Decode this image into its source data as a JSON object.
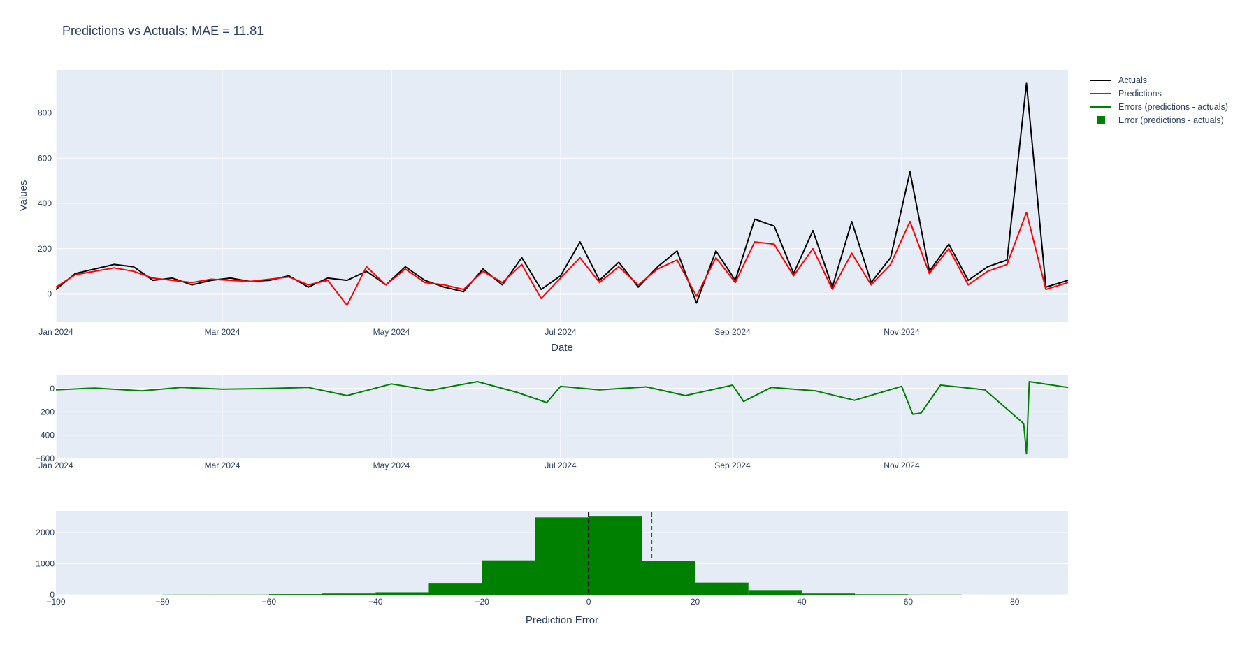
{
  "title": "Predictions vs Actuals: MAE = 11.81",
  "colors": {
    "actuals": "#000000",
    "predictions": "#ff0000",
    "errors": "#008000",
    "plot_bg": "#e5ecf6",
    "grid": "#ffffff",
    "text": "#2a3f5f"
  },
  "legend": {
    "placement": "top-right",
    "items": [
      {
        "label": "Actuals",
        "kind": "line",
        "color": "#000000"
      },
      {
        "label": "Predictions",
        "kind": "line",
        "color": "#ff0000"
      },
      {
        "label": "Errors (predictions - actuals)",
        "kind": "line",
        "color": "#008000"
      },
      {
        "label": "Error (predictions - actuals)",
        "kind": "square",
        "color": "#008000"
      }
    ]
  },
  "chart_data": [
    {
      "type": "line",
      "ylabel": "Values",
      "xlabel": "Date",
      "xlim": [
        "2024-01-01",
        "2024-12-31"
      ],
      "ylim": [
        -125,
        990
      ],
      "grid": true,
      "x_ticks": [
        {
          "date": "2024-01-01",
          "label": "Jan 2024"
        },
        {
          "date": "2024-03-01",
          "label": "Mar 2024"
        },
        {
          "date": "2024-05-01",
          "label": "May 2024"
        },
        {
          "date": "2024-07-01",
          "label": "Jul 2024"
        },
        {
          "date": "2024-09-01",
          "label": "Sep 2024"
        },
        {
          "date": "2024-11-01",
          "label": "Nov 2024"
        }
      ],
      "y_ticks": [
        0,
        200,
        400,
        600,
        800
      ],
      "series": [
        {
          "name": "Actuals",
          "color": "#000000",
          "points": [
            [
              "2024-01-01",
              20
            ],
            [
              "2024-01-08",
              90
            ],
            [
              "2024-01-15",
              110
            ],
            [
              "2024-01-22",
              130
            ],
            [
              "2024-01-29",
              120
            ],
            [
              "2024-02-05",
              60
            ],
            [
              "2024-02-12",
              70
            ],
            [
              "2024-02-19",
              40
            ],
            [
              "2024-02-26",
              60
            ],
            [
              "2024-03-04",
              70
            ],
            [
              "2024-03-11",
              55
            ],
            [
              "2024-03-18",
              60
            ],
            [
              "2024-03-25",
              80
            ],
            [
              "2024-04-01",
              30
            ],
            [
              "2024-04-08",
              70
            ],
            [
              "2024-04-15",
              60
            ],
            [
              "2024-04-22",
              100
            ],
            [
              "2024-04-29",
              40
            ],
            [
              "2024-05-06",
              120
            ],
            [
              "2024-05-13",
              60
            ],
            [
              "2024-05-20",
              30
            ],
            [
              "2024-05-27",
              10
            ],
            [
              "2024-06-03",
              110
            ],
            [
              "2024-06-10",
              40
            ],
            [
              "2024-06-17",
              160
            ],
            [
              "2024-06-24",
              20
            ],
            [
              "2024-07-01",
              80
            ],
            [
              "2024-07-08",
              230
            ],
            [
              "2024-07-15",
              60
            ],
            [
              "2024-07-22",
              140
            ],
            [
              "2024-07-29",
              30
            ],
            [
              "2024-08-05",
              120
            ],
            [
              "2024-08-12",
              190
            ],
            [
              "2024-08-19",
              -40
            ],
            [
              "2024-08-26",
              190
            ],
            [
              "2024-09-02",
              60
            ],
            [
              "2024-09-09",
              330
            ],
            [
              "2024-09-16",
              300
            ],
            [
              "2024-09-23",
              90
            ],
            [
              "2024-09-30",
              280
            ],
            [
              "2024-10-07",
              30
            ],
            [
              "2024-10-14",
              320
            ],
            [
              "2024-10-21",
              50
            ],
            [
              "2024-10-28",
              160
            ],
            [
              "2024-11-04",
              540
            ],
            [
              "2024-11-11",
              100
            ],
            [
              "2024-11-18",
              220
            ],
            [
              "2024-11-25",
              60
            ],
            [
              "2024-12-02",
              120
            ],
            [
              "2024-12-09",
              150
            ],
            [
              "2024-12-16",
              930
            ],
            [
              "2024-12-23",
              30
            ],
            [
              "2024-12-31",
              60
            ]
          ]
        },
        {
          "name": "Predictions",
          "color": "#ff0000",
          "points": [
            [
              "2024-01-01",
              30
            ],
            [
              "2024-01-08",
              85
            ],
            [
              "2024-01-15",
              100
            ],
            [
              "2024-01-22",
              115
            ],
            [
              "2024-01-29",
              100
            ],
            [
              "2024-02-05",
              70
            ],
            [
              "2024-02-12",
              60
            ],
            [
              "2024-02-19",
              50
            ],
            [
              "2024-02-26",
              65
            ],
            [
              "2024-03-04",
              60
            ],
            [
              "2024-03-11",
              55
            ],
            [
              "2024-03-18",
              65
            ],
            [
              "2024-03-25",
              75
            ],
            [
              "2024-04-01",
              40
            ],
            [
              "2024-04-08",
              60
            ],
            [
              "2024-04-15",
              -50
            ],
            [
              "2024-04-22",
              120
            ],
            [
              "2024-04-29",
              40
            ],
            [
              "2024-05-06",
              110
            ],
            [
              "2024-05-13",
              50
            ],
            [
              "2024-05-20",
              40
            ],
            [
              "2024-05-27",
              20
            ],
            [
              "2024-06-03",
              100
            ],
            [
              "2024-06-10",
              50
            ],
            [
              "2024-06-17",
              130
            ],
            [
              "2024-06-24",
              -20
            ],
            [
              "2024-07-01",
              70
            ],
            [
              "2024-07-08",
              160
            ],
            [
              "2024-07-15",
              50
            ],
            [
              "2024-07-22",
              120
            ],
            [
              "2024-07-29",
              40
            ],
            [
              "2024-08-05",
              110
            ],
            [
              "2024-08-12",
              150
            ],
            [
              "2024-08-19",
              -10
            ],
            [
              "2024-08-26",
              160
            ],
            [
              "2024-09-02",
              50
            ],
            [
              "2024-09-09",
              230
            ],
            [
              "2024-09-16",
              220
            ],
            [
              "2024-09-23",
              80
            ],
            [
              "2024-09-30",
              200
            ],
            [
              "2024-10-07",
              20
            ],
            [
              "2024-10-14",
              180
            ],
            [
              "2024-10-21",
              40
            ],
            [
              "2024-10-28",
              130
            ],
            [
              "2024-11-04",
              320
            ],
            [
              "2024-11-11",
              90
            ],
            [
              "2024-11-18",
              200
            ],
            [
              "2024-11-25",
              40
            ],
            [
              "2024-12-02",
              100
            ],
            [
              "2024-12-09",
              130
            ],
            [
              "2024-12-16",
              360
            ],
            [
              "2024-12-23",
              20
            ],
            [
              "2024-12-31",
              50
            ]
          ]
        }
      ]
    },
    {
      "type": "line",
      "xlim": [
        "2024-01-01",
        "2024-12-31"
      ],
      "ylim": [
        -600,
        120
      ],
      "grid": true,
      "x_ticks": [
        {
          "date": "2024-01-01",
          "label": "Jan 2024"
        },
        {
          "date": "2024-03-01",
          "label": "Mar 2024"
        },
        {
          "date": "2024-05-01",
          "label": "May 2024"
        },
        {
          "date": "2024-07-01",
          "label": "Jul 2024"
        },
        {
          "date": "2024-09-01",
          "label": "Sep 2024"
        },
        {
          "date": "2024-11-01",
          "label": "Nov 2024"
        }
      ],
      "y_ticks": [
        {
          "value": 0,
          "label": "0"
        },
        {
          "value": -200,
          "label": "−200"
        },
        {
          "value": -400,
          "label": "−400"
        },
        {
          "value": -600,
          "label": "−600"
        }
      ],
      "series": [
        {
          "name": "Errors (predictions - actuals)",
          "color": "#008000",
          "points": [
            [
              "2024-01-01",
              -10
            ],
            [
              "2024-01-15",
              5
            ],
            [
              "2024-02-01",
              -20
            ],
            [
              "2024-02-15",
              10
            ],
            [
              "2024-03-01",
              -5
            ],
            [
              "2024-03-15",
              0
            ],
            [
              "2024-04-01",
              10
            ],
            [
              "2024-04-15",
              -60
            ],
            [
              "2024-05-01",
              40
            ],
            [
              "2024-05-15",
              -15
            ],
            [
              "2024-06-01",
              60
            ],
            [
              "2024-06-15",
              -30
            ],
            [
              "2024-06-26",
              -120
            ],
            [
              "2024-07-01",
              20
            ],
            [
              "2024-07-15",
              -10
            ],
            [
              "2024-08-01",
              15
            ],
            [
              "2024-08-15",
              -60
            ],
            [
              "2024-09-01",
              30
            ],
            [
              "2024-09-05",
              -110
            ],
            [
              "2024-09-15",
              10
            ],
            [
              "2024-10-01",
              -20
            ],
            [
              "2024-10-15",
              -100
            ],
            [
              "2024-11-01",
              20
            ],
            [
              "2024-11-05",
              -220
            ],
            [
              "2024-11-08",
              -210
            ],
            [
              "2024-11-15",
              30
            ],
            [
              "2024-12-01",
              -10
            ],
            [
              "2024-12-15",
              -300
            ],
            [
              "2024-12-16",
              -560
            ],
            [
              "2024-12-17",
              60
            ],
            [
              "2024-12-31",
              10
            ]
          ]
        }
      ]
    },
    {
      "type": "bar",
      "xlabel": "Prediction Error",
      "xlim": [
        -100,
        90
      ],
      "ylim": [
        0,
        2700
      ],
      "grid": true,
      "x_ticks": [
        {
          "value": -100,
          "label": "−100"
        },
        {
          "value": -80,
          "label": "−80"
        },
        {
          "value": -60,
          "label": "−60"
        },
        {
          "value": -40,
          "label": "−40"
        },
        {
          "value": -20,
          "label": "−20"
        },
        {
          "value": 0,
          "label": "0"
        },
        {
          "value": 20,
          "label": "20"
        },
        {
          "value": 40,
          "label": "40"
        },
        {
          "value": 60,
          "label": "60"
        },
        {
          "value": 80,
          "label": "80"
        }
      ],
      "y_ticks": [
        0,
        1000,
        2000
      ],
      "bin_width": 10,
      "bins": [
        {
          "start": -80,
          "count": 5
        },
        {
          "start": -70,
          "count": 5
        },
        {
          "start": -60,
          "count": 20
        },
        {
          "start": -50,
          "count": 40
        },
        {
          "start": -40,
          "count": 80
        },
        {
          "start": -30,
          "count": 380
        },
        {
          "start": -20,
          "count": 1110
        },
        {
          "start": -10,
          "count": 2490
        },
        {
          "start": 0,
          "count": 2540
        },
        {
          "start": 10,
          "count": 1080
        },
        {
          "start": 20,
          "count": 390
        },
        {
          "start": 30,
          "count": 150
        },
        {
          "start": 40,
          "count": 40
        },
        {
          "start": 50,
          "count": 15
        },
        {
          "start": 60,
          "count": 5
        }
      ],
      "vlines": [
        {
          "x": 0,
          "color": "#000000",
          "dash": true
        },
        {
          "x": 11.81,
          "color": "#008000",
          "dash": true
        }
      ],
      "series_name": "Error (predictions - actuals)",
      "color": "#008000"
    }
  ]
}
